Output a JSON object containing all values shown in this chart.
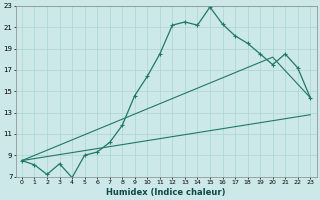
{
  "xlabel": "Humidex (Indice chaleur)",
  "bg_color": "#cce8e8",
  "line_color": "#207868",
  "grid_color": "#aad4d4",
  "xlim": [
    -0.5,
    23.5
  ],
  "ylim": [
    7,
    23
  ],
  "xticks": [
    0,
    1,
    2,
    3,
    4,
    5,
    6,
    7,
    8,
    9,
    10,
    11,
    12,
    13,
    14,
    15,
    16,
    17,
    18,
    19,
    20,
    21,
    22,
    23
  ],
  "yticks": [
    7,
    9,
    11,
    13,
    15,
    17,
    19,
    21,
    23
  ],
  "line1_x": [
    0,
    1,
    2,
    3,
    4,
    5,
    6,
    7,
    8,
    9,
    10,
    11,
    12,
    13,
    14,
    15,
    16,
    17,
    18,
    19,
    20,
    21,
    22,
    23
  ],
  "line1_y": [
    8.5,
    8.1,
    7.2,
    8.2,
    6.9,
    9.0,
    9.3,
    10.2,
    11.8,
    14.6,
    16.4,
    18.5,
    21.2,
    21.5,
    21.2,
    22.9,
    21.3,
    20.2,
    19.5,
    18.5,
    17.5,
    18.5,
    17.2,
    14.4
  ],
  "line2_x": [
    0,
    23
  ],
  "line2_y": [
    8.5,
    12.8
  ],
  "line3_x": [
    0,
    20,
    23
  ],
  "line3_y": [
    8.5,
    18.2,
    14.4
  ]
}
